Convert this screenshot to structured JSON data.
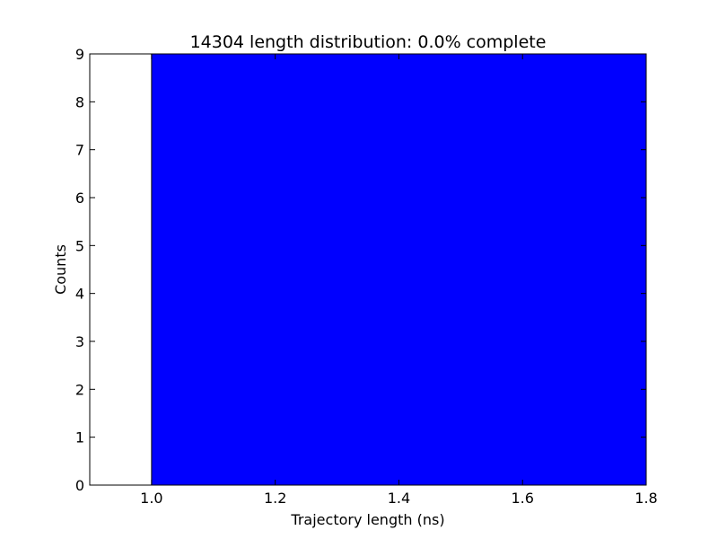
{
  "chart_data": {
    "type": "bar",
    "title": "14304 length distribution: 0.0% complete",
    "xlabel": "Trajectory length (ns)",
    "ylabel": "Counts",
    "xlim": [
      0.9,
      1.8
    ],
    "ylim": [
      0,
      9
    ],
    "xticks": [
      "1.0",
      "1.2",
      "1.4",
      "1.6",
      "1.8"
    ],
    "yticks": [
      "0",
      "1",
      "2",
      "3",
      "4",
      "5",
      "6",
      "7",
      "8",
      "9"
    ],
    "bins": [
      {
        "x_start": 1.0,
        "x_end": 1.8,
        "count": 9
      }
    ],
    "grid": false,
    "colors": {
      "bar": "#0000ff",
      "edge": "#000000",
      "axes": "#000000",
      "background": "#ffffff"
    }
  }
}
